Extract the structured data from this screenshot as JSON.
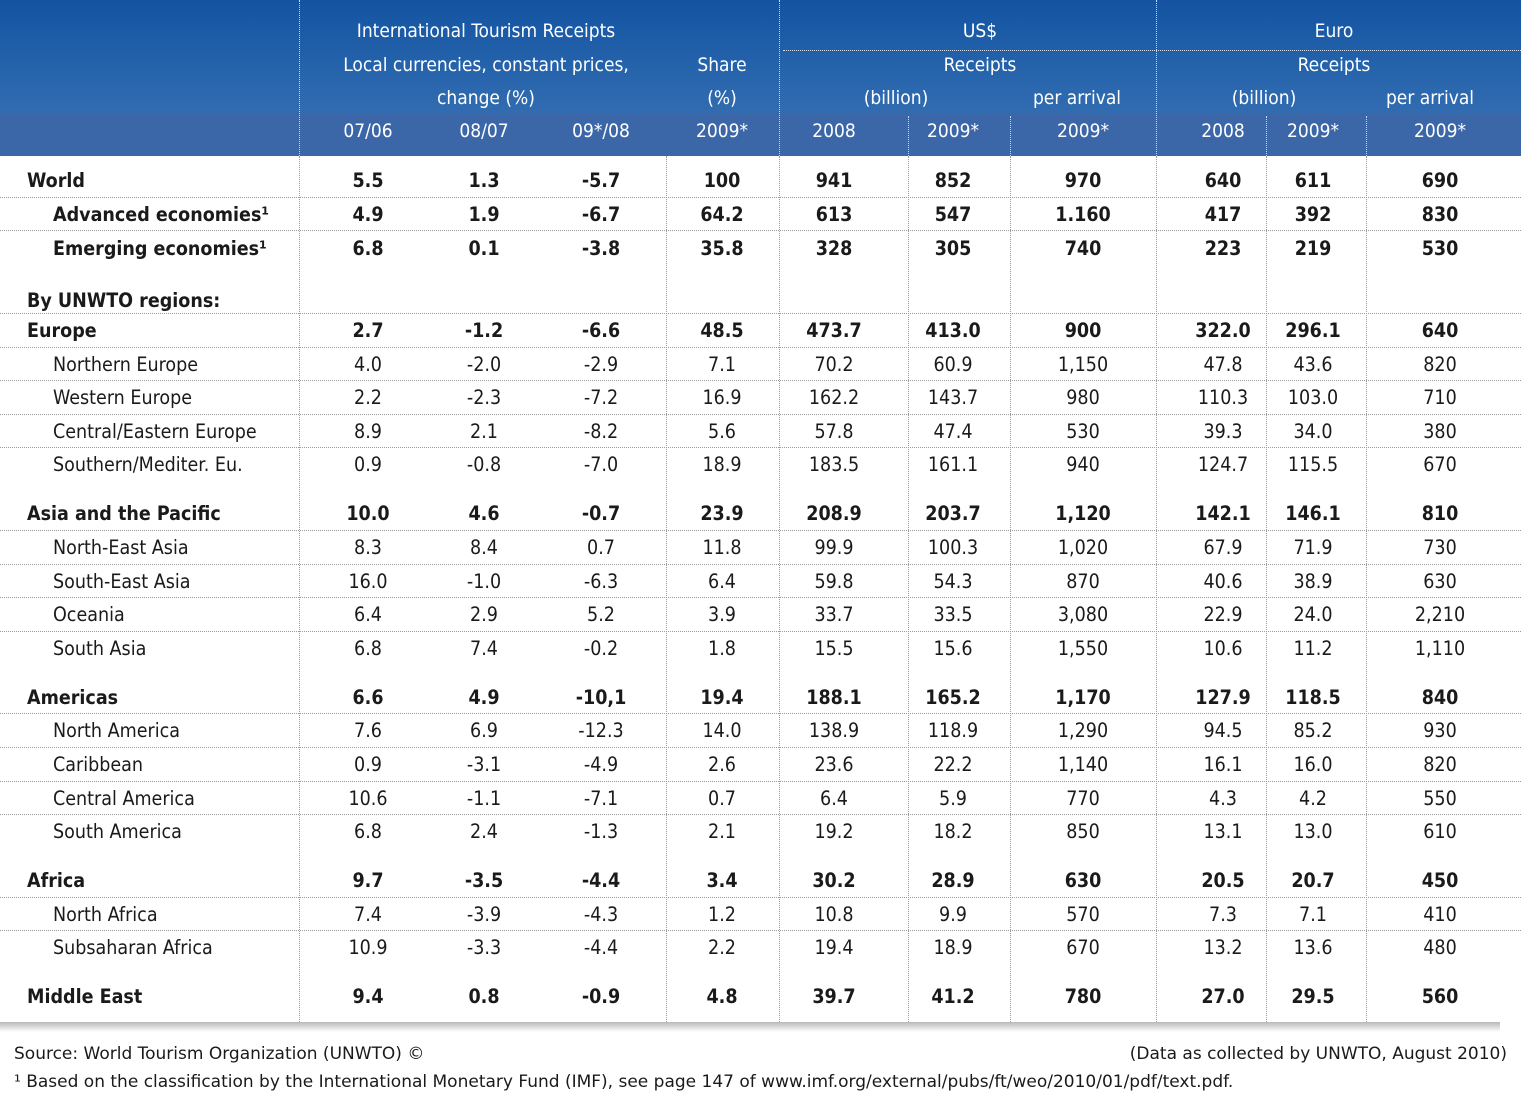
{
  "header": {
    "itr_title": "International Tourism Receipts",
    "itr_sub1": "Local currencies, constant prices,",
    "itr_sub2": "change (%)",
    "share_1": "Share",
    "share_2": "(%)",
    "usd_title": "US$",
    "usd_receipts": "Receipts",
    "usd_billion": "(billion)",
    "usd_per_arrival": "per arrival",
    "eur_title": "Euro",
    "eur_receipts": "Receipts",
    "eur_billion": "(billion)",
    "eur_per_arrival": "per arrival",
    "years": [
      "07/06",
      "08/07",
      "09*/08",
      "2009*",
      "2008",
      "2009*",
      "2009*",
      "2008",
      "2009*",
      "2009*"
    ]
  },
  "rows": [
    {
      "label": "World",
      "values": [
        "5.5",
        "1.3",
        "-5.7",
        "100",
        "941",
        "852",
        "970",
        "640",
        "611",
        "690"
      ]
    },
    {
      "label": "Advanced economies¹",
      "values": [
        "4.9",
        "1.9",
        "-6.7",
        "64.2",
        "613",
        "547",
        "1.160",
        "417",
        "392",
        "830"
      ]
    },
    {
      "label": "Emerging economies¹",
      "values": [
        "6.8",
        "0.1",
        "-3.8",
        "35.8",
        "328",
        "305",
        "740",
        "223",
        "219",
        "530"
      ]
    },
    {
      "label": "By UNWTO regions:",
      "values": []
    },
    {
      "label": "Europe",
      "values": [
        "2.7",
        "-1.2",
        "-6.6",
        "48.5",
        "473.7",
        "413.0",
        "900",
        "322.0",
        "296.1",
        "640"
      ]
    },
    {
      "label": "Northern Europe",
      "values": [
        "4.0",
        "-2.0",
        "-2.9",
        "7.1",
        "70.2",
        "60.9",
        "1,150",
        "47.8",
        "43.6",
        "820"
      ]
    },
    {
      "label": "Western Europe",
      "values": [
        "2.2",
        "-2.3",
        "-7.2",
        "16.9",
        "162.2",
        "143.7",
        "980",
        "110.3",
        "103.0",
        "710"
      ]
    },
    {
      "label": "Central/Eastern Europe",
      "values": [
        "8.9",
        "2.1",
        "-8.2",
        "5.6",
        "57.8",
        "47.4",
        "530",
        "39.3",
        "34.0",
        "380"
      ]
    },
    {
      "label": "Southern/Mediter. Eu.",
      "values": [
        "0.9",
        "-0.8",
        "-7.0",
        "18.9",
        "183.5",
        "161.1",
        "940",
        "124.7",
        "115.5",
        "670"
      ]
    },
    {
      "label": "Asia and the Pacific",
      "values": [
        "10.0",
        "4.6",
        "-0.7",
        "23.9",
        "208.9",
        "203.7",
        "1,120",
        "142.1",
        "146.1",
        "810"
      ]
    },
    {
      "label": "North-East Asia",
      "values": [
        "8.3",
        "8.4",
        "0.7",
        "11.8",
        "99.9",
        "100.3",
        "1,020",
        "67.9",
        "71.9",
        "730"
      ]
    },
    {
      "label": "South-East Asia",
      "values": [
        "16.0",
        "-1.0",
        "-6.3",
        "6.4",
        "59.8",
        "54.3",
        "870",
        "40.6",
        "38.9",
        "630"
      ]
    },
    {
      "label": "Oceania",
      "values": [
        "6.4",
        "2.9",
        "5.2",
        "3.9",
        "33.7",
        "33.5",
        "3,080",
        "22.9",
        "24.0",
        "2,210"
      ]
    },
    {
      "label": "South Asia",
      "values": [
        "6.8",
        "7.4",
        "-0.2",
        "1.8",
        "15.5",
        "15.6",
        "1,550",
        "10.6",
        "11.2",
        "1,110"
      ]
    },
    {
      "label": "Americas",
      "values": [
        "6.6",
        "4.9",
        "-10,1",
        "19.4",
        "188.1",
        "165.2",
        "1,170",
        "127.9",
        "118.5",
        "840"
      ]
    },
    {
      "label": "North America",
      "values": [
        "7.6",
        "6.9",
        "-12.3",
        "14.0",
        "138.9",
        "118.9",
        "1,290",
        "94.5",
        "85.2",
        "930"
      ]
    },
    {
      "label": "Caribbean",
      "values": [
        "0.9",
        "-3.1",
        "-4.9",
        "2.6",
        "23.6",
        "22.2",
        "1,140",
        "16.1",
        "16.0",
        "820"
      ]
    },
    {
      "label": "Central America",
      "values": [
        "10.6",
        "-1.1",
        "-7.1",
        "0.7",
        "6.4",
        "5.9",
        "770",
        "4.3",
        "4.2",
        "550"
      ]
    },
    {
      "label": "South America",
      "values": [
        "6.8",
        "2.4",
        "-1.3",
        "2.1",
        "19.2",
        "18.2",
        "850",
        "13.1",
        "13.0",
        "610"
      ]
    },
    {
      "label": "Africa",
      "values": [
        "9.7",
        "-3.5",
        "-4.4",
        "3.4",
        "30.2",
        "28.9",
        "630",
        "20.5",
        "20.7",
        "450"
      ]
    },
    {
      "label": "North Africa",
      "values": [
        "7.4",
        "-3.9",
        "-4.3",
        "1.2",
        "10.8",
        "9.9",
        "570",
        "7.3",
        "7.1",
        "410"
      ]
    },
    {
      "label": "Subsaharan Africa",
      "values": [
        "10.9",
        "-3.3",
        "-4.4",
        "2.2",
        "19.4",
        "18.9",
        "670",
        "13.2",
        "13.6",
        "480"
      ]
    },
    {
      "label": "Middle East",
      "values": [
        "9.4",
        "0.8",
        "-0.9",
        "4.8",
        "39.7",
        "41.2",
        "780",
        "27.0",
        "29.5",
        "560"
      ]
    }
  ],
  "footer": {
    "source": "Source: World Tourism Organization (UNWTO) ©",
    "collected": "(Data as collected by UNWTO, August 2010)",
    "note": "¹ Based on the classification by the International Monetary Fund (IMF), see page 147 of www.imf.org/external/pubs/ft/weo/2010/01/pdf/text.pdf."
  },
  "colors": {
    "header_blue": "#1353a1",
    "year_band": "#3b66a8",
    "header_text": "#ffffff"
  }
}
